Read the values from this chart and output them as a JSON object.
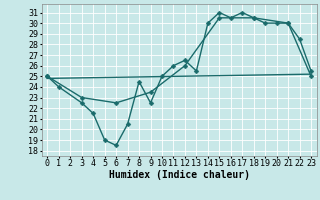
{
  "xlabel": "Humidex (Indice chaleur)",
  "background_color": "#c8e8e8",
  "grid_color": "#ffffff",
  "line_color": "#1a6b6b",
  "xlim": [
    -0.5,
    23.5
  ],
  "ylim": [
    17.5,
    31.8
  ],
  "yticks": [
    18,
    19,
    20,
    21,
    22,
    23,
    24,
    25,
    26,
    27,
    28,
    29,
    30,
    31
  ],
  "xticks": [
    0,
    1,
    2,
    3,
    4,
    5,
    6,
    7,
    8,
    9,
    10,
    11,
    12,
    13,
    14,
    15,
    16,
    17,
    18,
    19,
    20,
    21,
    22,
    23
  ],
  "line1_x": [
    0,
    1,
    3,
    4,
    5,
    6,
    7,
    8,
    9,
    10,
    11,
    12,
    13,
    14,
    15,
    16,
    17,
    18,
    19,
    20,
    21,
    22,
    23
  ],
  "line1_y": [
    25,
    24,
    22.5,
    21.5,
    19,
    18.5,
    20.5,
    24.5,
    22.5,
    25,
    26,
    26.5,
    25.5,
    30,
    31,
    30.5,
    31,
    30.5,
    30,
    30,
    30,
    28.5,
    25.5
  ],
  "line2_x": [
    0,
    3,
    6,
    9,
    12,
    15,
    18,
    21,
    23
  ],
  "line2_y": [
    25,
    23,
    22.5,
    23.5,
    26,
    30.5,
    30.5,
    30,
    25
  ],
  "line3_x": [
    0,
    23
  ],
  "line3_y": [
    24.8,
    25.2
  ],
  "font_size_xlabel": 7,
  "font_size_ticks": 6,
  "linewidth": 1.0,
  "marker_size": 2.5
}
